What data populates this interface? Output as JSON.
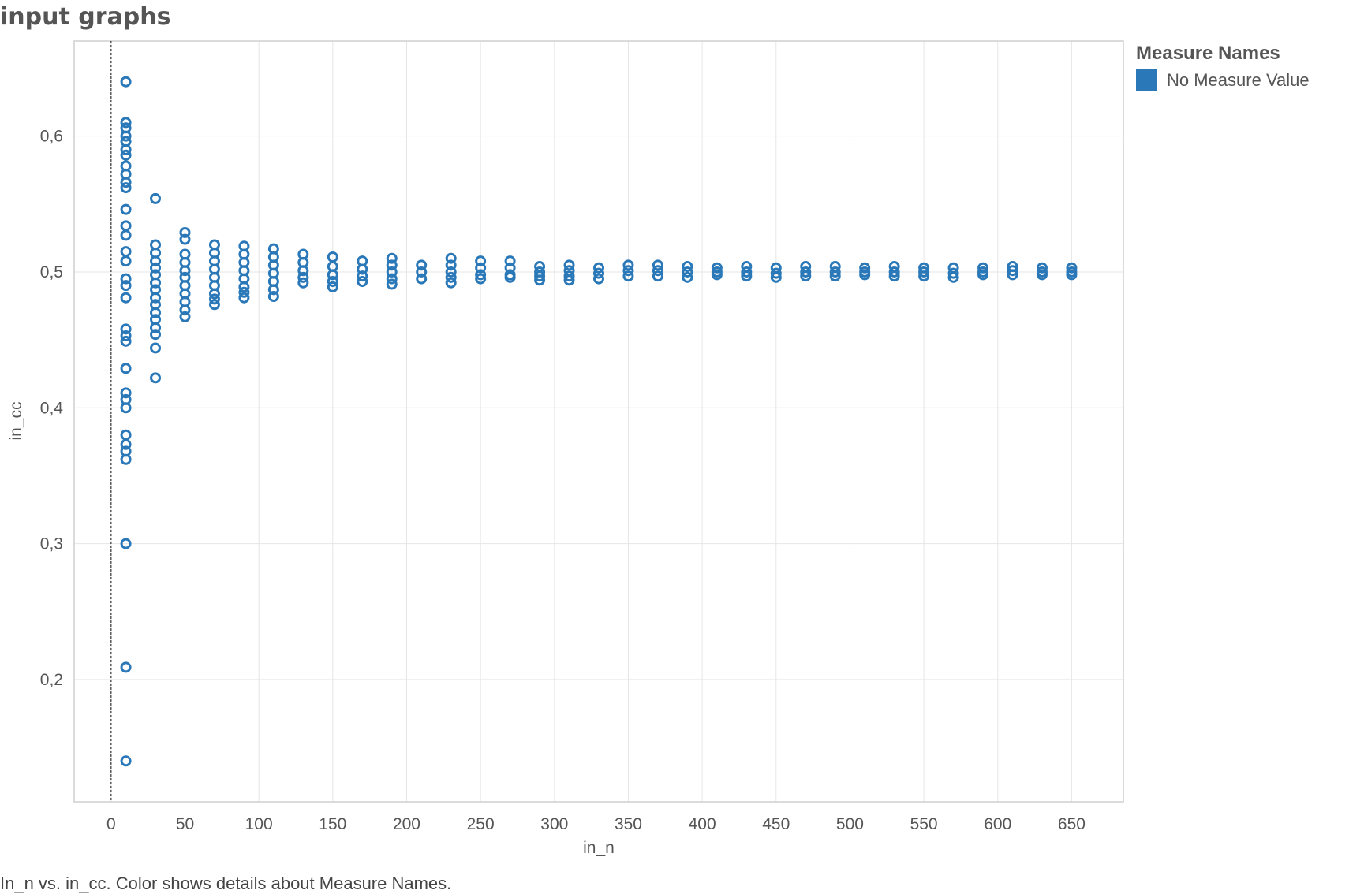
{
  "page": {
    "title": "input graphs",
    "caption": "In_n vs. in_cc.  Color shows details about Measure Names."
  },
  "legend": {
    "title": "Measure Names",
    "items": [
      {
        "label": "No Measure Value",
        "color": "#2a78b7"
      }
    ]
  },
  "colors": {
    "marker": "#2a78b7",
    "grid": "#e6e6e6",
    "border": "#cfcfcf",
    "reference_line": "#333333"
  },
  "chart_data": {
    "type": "scatter",
    "title": "input graphs",
    "xlabel": "in_n",
    "ylabel": "in_cc",
    "xlim": [
      -25,
      685
    ],
    "ylim": [
      0.11,
      0.67
    ],
    "x_ticks": [
      0,
      50,
      100,
      150,
      200,
      250,
      300,
      350,
      400,
      450,
      500,
      550,
      600,
      650
    ],
    "x_tick_labels": [
      "0",
      "50",
      "100",
      "150",
      "200",
      "250",
      "300",
      "350",
      "400",
      "450",
      "500",
      "550",
      "600",
      "650"
    ],
    "y_ticks": [
      0.2,
      0.3,
      0.4,
      0.5,
      0.6
    ],
    "y_tick_labels": [
      "0,2",
      "0,3",
      "0,4",
      "0,5",
      "0,6"
    ],
    "grid": true,
    "reference_line_x": 0,
    "marker": "open-circle",
    "legend_position": "top-right",
    "series": [
      {
        "name": "No Measure Value",
        "points": [
          [
            10,
            0.64
          ],
          [
            10,
            0.61
          ],
          [
            10,
            0.606
          ],
          [
            10,
            0.6
          ],
          [
            10,
            0.596
          ],
          [
            10,
            0.59
          ],
          [
            10,
            0.586
          ],
          [
            10,
            0.578
          ],
          [
            10,
            0.572
          ],
          [
            10,
            0.566
          ],
          [
            10,
            0.562
          ],
          [
            10,
            0.546
          ],
          [
            10,
            0.534
          ],
          [
            10,
            0.527
          ],
          [
            10,
            0.515
          ],
          [
            10,
            0.508
          ],
          [
            10,
            0.495
          ],
          [
            10,
            0.49
          ],
          [
            10,
            0.481
          ],
          [
            10,
            0.458
          ],
          [
            10,
            0.453
          ],
          [
            10,
            0.449
          ],
          [
            10,
            0.429
          ],
          [
            10,
            0.411
          ],
          [
            10,
            0.406
          ],
          [
            10,
            0.4
          ],
          [
            10,
            0.38
          ],
          [
            10,
            0.373
          ],
          [
            10,
            0.368
          ],
          [
            10,
            0.362
          ],
          [
            10,
            0.3
          ],
          [
            10,
            0.209
          ],
          [
            10,
            0.14
          ],
          [
            30,
            0.554
          ],
          [
            30,
            0.52
          ],
          [
            30,
            0.514
          ],
          [
            30,
            0.508
          ],
          [
            30,
            0.503
          ],
          [
            30,
            0.498
          ],
          [
            30,
            0.492
          ],
          [
            30,
            0.487
          ],
          [
            30,
            0.481
          ],
          [
            30,
            0.476
          ],
          [
            30,
            0.47
          ],
          [
            30,
            0.465
          ],
          [
            30,
            0.459
          ],
          [
            30,
            0.454
          ],
          [
            30,
            0.444
          ],
          [
            30,
            0.422
          ],
          [
            50,
            0.529
          ],
          [
            50,
            0.524
          ],
          [
            50,
            0.513
          ],
          [
            50,
            0.507
          ],
          [
            50,
            0.501
          ],
          [
            50,
            0.496
          ],
          [
            50,
            0.49
          ],
          [
            50,
            0.484
          ],
          [
            50,
            0.478
          ],
          [
            50,
            0.472
          ],
          [
            50,
            0.467
          ],
          [
            70,
            0.52
          ],
          [
            70,
            0.514
          ],
          [
            70,
            0.508
          ],
          [
            70,
            0.502
          ],
          [
            70,
            0.496
          ],
          [
            70,
            0.49
          ],
          [
            70,
            0.484
          ],
          [
            70,
            0.48
          ],
          [
            70,
            0.476
          ],
          [
            90,
            0.519
          ],
          [
            90,
            0.513
          ],
          [
            90,
            0.507
          ],
          [
            90,
            0.501
          ],
          [
            90,
            0.495
          ],
          [
            90,
            0.489
          ],
          [
            90,
            0.485
          ],
          [
            90,
            0.481
          ],
          [
            110,
            0.517
          ],
          [
            110,
            0.511
          ],
          [
            110,
            0.505
          ],
          [
            110,
            0.499
          ],
          [
            110,
            0.493
          ],
          [
            110,
            0.487
          ],
          [
            110,
            0.482
          ],
          [
            130,
            0.513
          ],
          [
            130,
            0.507
          ],
          [
            130,
            0.501
          ],
          [
            130,
            0.496
          ],
          [
            130,
            0.492
          ],
          [
            150,
            0.511
          ],
          [
            150,
            0.504
          ],
          [
            150,
            0.498
          ],
          [
            150,
            0.493
          ],
          [
            150,
            0.489
          ],
          [
            170,
            0.508
          ],
          [
            170,
            0.502
          ],
          [
            170,
            0.497
          ],
          [
            170,
            0.493
          ],
          [
            190,
            0.51
          ],
          [
            190,
            0.505
          ],
          [
            190,
            0.5
          ],
          [
            190,
            0.495
          ],
          [
            190,
            0.491
          ],
          [
            210,
            0.505
          ],
          [
            210,
            0.5
          ],
          [
            210,
            0.495
          ],
          [
            230,
            0.51
          ],
          [
            230,
            0.505
          ],
          [
            230,
            0.5
          ],
          [
            230,
            0.496
          ],
          [
            230,
            0.492
          ],
          [
            250,
            0.508
          ],
          [
            250,
            0.503
          ],
          [
            250,
            0.498
          ],
          [
            250,
            0.495
          ],
          [
            270,
            0.508
          ],
          [
            270,
            0.503
          ],
          [
            270,
            0.498
          ],
          [
            270,
            0.496
          ],
          [
            290,
            0.504
          ],
          [
            290,
            0.5
          ],
          [
            290,
            0.497
          ],
          [
            290,
            0.494
          ],
          [
            310,
            0.505
          ],
          [
            310,
            0.501
          ],
          [
            310,
            0.497
          ],
          [
            310,
            0.494
          ],
          [
            330,
            0.503
          ],
          [
            330,
            0.499
          ],
          [
            330,
            0.495
          ],
          [
            350,
            0.505
          ],
          [
            350,
            0.501
          ],
          [
            350,
            0.497
          ],
          [
            370,
            0.505
          ],
          [
            370,
            0.501
          ],
          [
            370,
            0.497
          ],
          [
            390,
            0.504
          ],
          [
            390,
            0.5
          ],
          [
            390,
            0.496
          ],
          [
            410,
            0.503
          ],
          [
            410,
            0.5
          ],
          [
            410,
            0.498
          ],
          [
            430,
            0.504
          ],
          [
            430,
            0.5
          ],
          [
            430,
            0.497
          ],
          [
            450,
            0.503
          ],
          [
            450,
            0.499
          ],
          [
            450,
            0.496
          ],
          [
            470,
            0.504
          ],
          [
            470,
            0.5
          ],
          [
            470,
            0.497
          ],
          [
            490,
            0.504
          ],
          [
            490,
            0.5
          ],
          [
            490,
            0.497
          ],
          [
            510,
            0.503
          ],
          [
            510,
            0.5
          ],
          [
            510,
            0.498
          ],
          [
            530,
            0.504
          ],
          [
            530,
            0.5
          ],
          [
            530,
            0.497
          ],
          [
            550,
            0.503
          ],
          [
            550,
            0.5
          ],
          [
            550,
            0.497
          ],
          [
            570,
            0.503
          ],
          [
            570,
            0.499
          ],
          [
            570,
            0.496
          ],
          [
            590,
            0.503
          ],
          [
            590,
            0.5
          ],
          [
            590,
            0.498
          ],
          [
            610,
            0.504
          ],
          [
            610,
            0.501
          ],
          [
            610,
            0.498
          ],
          [
            630,
            0.503
          ],
          [
            630,
            0.5
          ],
          [
            630,
            0.498
          ],
          [
            650,
            0.503
          ],
          [
            650,
            0.5
          ],
          [
            650,
            0.498
          ]
        ]
      }
    ]
  }
}
